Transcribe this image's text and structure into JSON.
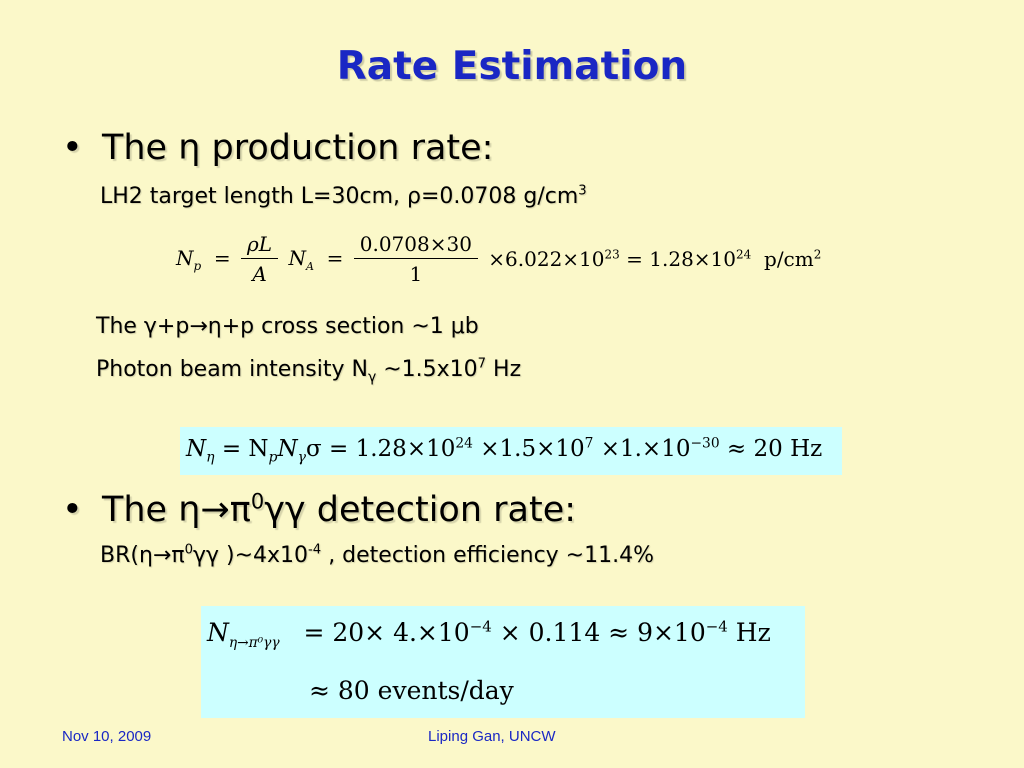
{
  "title": "Rate Estimation",
  "section1": {
    "bullet": "The η production rate:",
    "target_line": "LH2 target length L=30cm, ρ=0.0708 g/cm",
    "target_line_sup": "3",
    "eq1": {
      "lhs": "N",
      "lhs_sub": "p",
      "frac1_num": "ρL",
      "frac1_den": "A",
      "na": "N",
      "na_sub": "A",
      "frac2_num": "0.0708×30",
      "frac2_den": "1",
      "rest": "×6.022×10",
      "rest_sup": "23",
      "result": "= 1.28×10",
      "result_sup": "24",
      "unit": "p/cm",
      "unit_sup": "2"
    },
    "cross_section": "The γ+p→η+p cross section ~1 μb",
    "beam_intensity": "Photon beam intensity N",
    "beam_intensity_sub": "γ",
    "beam_intensity_val": " ~1.5x10",
    "beam_intensity_sup": "7",
    "beam_intensity_unit": " Hz",
    "eq2": {
      "text_a": "N",
      "sub_a": "η",
      "text_b": " = N",
      "sub_b": "p",
      "text_c": "N",
      "sub_c": "γ",
      "text_d": "σ = 1.28×10",
      "sup_d": "24",
      "text_e": " ×1.5×10",
      "sup_e": "7",
      "text_f": " ×1.×10",
      "sup_f": "−30",
      "text_g": "  ≈ 20 Hz"
    }
  },
  "section2": {
    "bullet_a": "The η→π",
    "bullet_sup": "0",
    "bullet_b": "γγ detection rate:",
    "br_a": "BR(η→π",
    "br_sup": "0",
    "br_b": "γγ )~4x10",
    "br_sup2": "-4",
    "br_c": " , detection efficiency ~11.4%",
    "eq3": {
      "lhs": "N",
      "lhs_sub": "η→π⁰γγ",
      "rhs_a": "= 20× 4.×10",
      "rhs_sup1": "−4",
      "rhs_b": " × 0.114 ≈ 9×10",
      "rhs_sup2": "−4",
      "rhs_c": "  Hz",
      "line2": "≈ 80 events/day"
    }
  },
  "footer": {
    "date": "Nov 10, 2009",
    "author": "Liping Gan, UNCW"
  }
}
